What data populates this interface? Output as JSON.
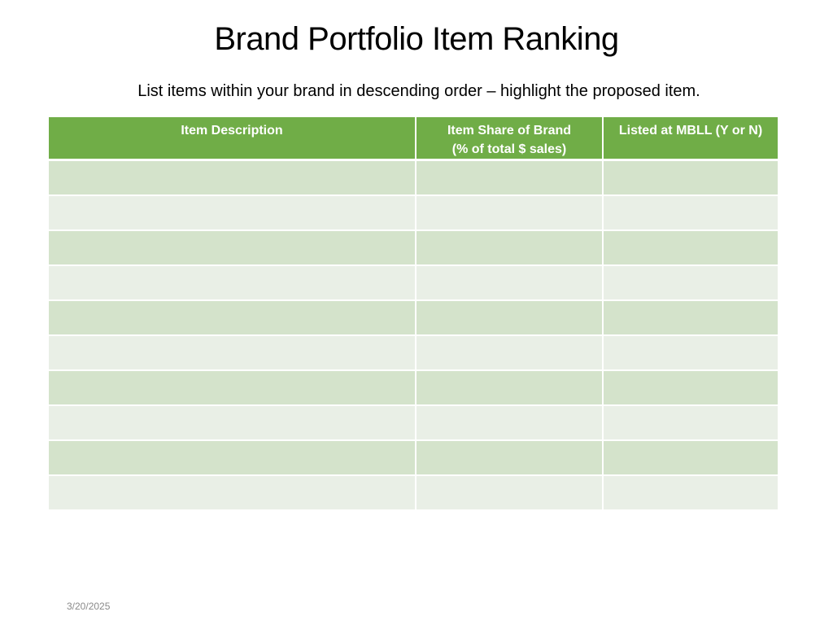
{
  "slide": {
    "title": "Brand Portfolio Item Ranking",
    "subtitle": "List items within your brand in descending order – highlight the proposed item.",
    "date": "3/20/2025"
  },
  "table": {
    "headers": [
      {
        "line1": "Item Description",
        "line2": ""
      },
      {
        "line1": "Item Share of Brand",
        "line2": "(% of total $ sales)"
      },
      {
        "line1": "Listed at MBLL (Y or N)",
        "line2": ""
      }
    ],
    "rows": [
      [
        "",
        "",
        ""
      ],
      [
        "",
        "",
        ""
      ],
      [
        "",
        "",
        ""
      ],
      [
        "",
        "",
        ""
      ],
      [
        "",
        "",
        ""
      ],
      [
        "",
        "",
        ""
      ],
      [
        "",
        "",
        ""
      ],
      [
        "",
        "",
        ""
      ],
      [
        "",
        "",
        ""
      ],
      [
        "",
        "",
        ""
      ]
    ]
  },
  "colors": {
    "header_bg": "#70ad47",
    "row_dark": "#d4e3cb",
    "row_light": "#e9efe6"
  }
}
